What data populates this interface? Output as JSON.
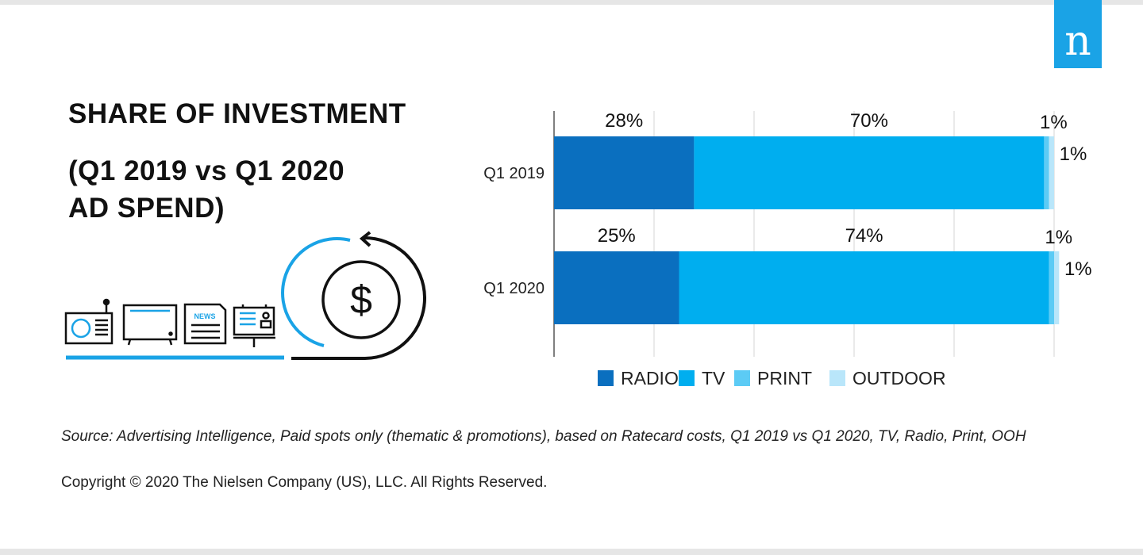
{
  "header": {
    "title_line1": "SHARE OF INVESTMENT",
    "title_line2": "(Q1 2019 vs Q1 2020",
    "title_line3": "AD SPEND)",
    "logo_letter": "n",
    "brand_color": "#1aa3e6"
  },
  "icons": {
    "newspaper_label": "NEWS"
  },
  "chart_data": {
    "type": "bar",
    "orientation": "horizontal",
    "stacked": true,
    "title": "SHARE OF INVESTMENT (Q1 2019 vs Q1 2020 AD SPEND)",
    "xlabel": "",
    "ylabel": "",
    "xlim": [
      0,
      100
    ],
    "grid": true,
    "categories": [
      "Q1 2019",
      "Q1 2020"
    ],
    "series": [
      {
        "name": "RADIO",
        "color": "#0a6fbf",
        "values": [
          28,
          25
        ],
        "labels": [
          "28%",
          "25%"
        ]
      },
      {
        "name": "TV",
        "color": "#00aeef",
        "values": [
          70,
          74
        ],
        "labels": [
          "70%",
          "74%"
        ]
      },
      {
        "name": "PRINT",
        "color": "#5ccbf5",
        "values": [
          1,
          1
        ],
        "labels": [
          "1%",
          "1%"
        ]
      },
      {
        "name": "OUTDOOR",
        "color": "#b9e6fa",
        "values": [
          1,
          1
        ],
        "labels": [
          "1%",
          "1%"
        ]
      }
    ],
    "legend": {
      "position": "bottom",
      "entries": [
        "RADIO",
        "TV",
        "PRINT",
        "OUTDOOR"
      ]
    }
  },
  "footer": {
    "source": "Source:  Advertising Intelligence, Paid spots only (thematic & promotions), based on Ratecard costs, Q1 2019 vs Q1 2020, TV, Radio, Print, OOH",
    "copyright": "Copyright © 2020 The Nielsen Company (US), LLC. All Rights Reserved."
  }
}
